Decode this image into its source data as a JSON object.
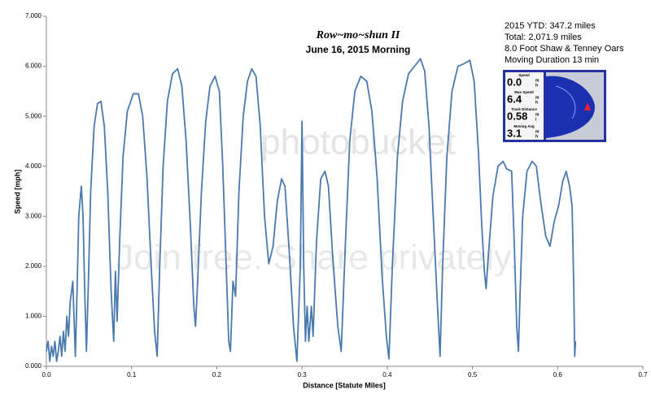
{
  "chart_data": {
    "type": "line",
    "title": "Row~mo~shun II",
    "subtitle": "June 16, 2015 Morning",
    "xlabel": "Distance [Statute Miles]",
    "ylabel": "Speed [mph]",
    "color": "#4a7aad",
    "xlim": [
      0,
      0.7
    ],
    "ylim": [
      0,
      7
    ],
    "xticks": [
      {
        "value": 0,
        "label": "0.0"
      },
      0.1,
      0.2,
      0.3,
      0.4,
      0.5,
      0.6,
      0.7
    ],
    "yticks": [
      {
        "value": 0,
        "label": "0.000"
      },
      {
        "value": 1,
        "label": "1.000"
      },
      {
        "value": 2,
        "label": "2.000"
      },
      {
        "value": 3,
        "label": "3.000"
      },
      {
        "value": 4,
        "label": "4.000"
      },
      {
        "value": 5,
        "label": "5.000"
      },
      {
        "value": 6,
        "label": "6.000"
      },
      {
        "value": 7,
        "label": "7.000"
      }
    ],
    "x": [
      0.0,
      0.002,
      0.004,
      0.006,
      0.008,
      0.01,
      0.012,
      0.014,
      0.016,
      0.018,
      0.02,
      0.022,
      0.024,
      0.026,
      0.028,
      0.031,
      0.034,
      0.036,
      0.038,
      0.041,
      0.043,
      0.045,
      0.047,
      0.049,
      0.052,
      0.056,
      0.06,
      0.064,
      0.068,
      0.072,
      0.076,
      0.079,
      0.081,
      0.083,
      0.086,
      0.09,
      0.095,
      0.102,
      0.108,
      0.113,
      0.118,
      0.123,
      0.127,
      0.13,
      0.133,
      0.137,
      0.142,
      0.148,
      0.154,
      0.159,
      0.164,
      0.169,
      0.173,
      0.175,
      0.177,
      0.182,
      0.187,
      0.192,
      0.198,
      0.203,
      0.207,
      0.211,
      0.214,
      0.216,
      0.219,
      0.222,
      0.226,
      0.231,
      0.236,
      0.241,
      0.246,
      0.251,
      0.256,
      0.261,
      0.266,
      0.271,
      0.276,
      0.28,
      0.285,
      0.29,
      0.294,
      0.298,
      0.3,
      0.302,
      0.304,
      0.306,
      0.308,
      0.311,
      0.313,
      0.317,
      0.322,
      0.327,
      0.331,
      0.336,
      0.342,
      0.346,
      0.351,
      0.356,
      0.362,
      0.369,
      0.376,
      0.382,
      0.388,
      0.394,
      0.399,
      0.402,
      0.406,
      0.412,
      0.418,
      0.425,
      0.432,
      0.439,
      0.444,
      0.449,
      0.454,
      0.459,
      0.462,
      0.465,
      0.47,
      0.476,
      0.483,
      0.49,
      0.497,
      0.502,
      0.507,
      0.511,
      0.514,
      0.516,
      0.519,
      0.524,
      0.53,
      0.536,
      0.54,
      0.546,
      0.549,
      0.552,
      0.554,
      0.556,
      0.559,
      0.564,
      0.57,
      0.575,
      0.58,
      0.586,
      0.591,
      0.596,
      0.601,
      0.606,
      0.61,
      0.614,
      0.617,
      0.619,
      0.62,
      0.621
    ],
    "values": [
      0.3,
      0.5,
      0.1,
      0.4,
      0.2,
      0.5,
      0.1,
      0.3,
      0.6,
      0.2,
      0.7,
      0.3,
      1.0,
      0.6,
      1.3,
      1.7,
      0.2,
      1.5,
      3.0,
      3.6,
      3.0,
      1.5,
      0.3,
      1.5,
      3.5,
      4.8,
      5.25,
      5.3,
      4.8,
      3.5,
      1.5,
      0.5,
      1.9,
      0.9,
      2.5,
      4.2,
      5.1,
      5.45,
      5.45,
      5.0,
      3.8,
      2.0,
      0.7,
      0.2,
      2.0,
      4.0,
      5.3,
      5.85,
      5.95,
      5.6,
      4.5,
      2.8,
      1.2,
      0.8,
      1.5,
      3.5,
      4.9,
      5.6,
      5.8,
      5.5,
      4.0,
      2.0,
      0.5,
      0.3,
      1.7,
      1.4,
      3.5,
      5.0,
      5.7,
      5.95,
      5.8,
      4.8,
      3.0,
      2.05,
      2.4,
      3.3,
      3.75,
      3.6,
      2.3,
      0.8,
      0.1,
      2.0,
      4.9,
      2.0,
      0.5,
      1.2,
      0.5,
      1.2,
      0.6,
      2.5,
      3.75,
      3.9,
      3.6,
      2.2,
      0.8,
      0.3,
      2.5,
      4.5,
      5.5,
      5.8,
      5.7,
      5.1,
      3.8,
      1.8,
      0.6,
      0.15,
      2.0,
      4.2,
      5.3,
      5.85,
      6.0,
      6.15,
      5.9,
      4.8,
      3.0,
      1.2,
      0.2,
      2.0,
      4.2,
      5.5,
      6.0,
      6.05,
      6.12,
      5.7,
      4.3,
      2.8,
      1.9,
      1.55,
      2.3,
      3.4,
      4.0,
      4.1,
      3.95,
      3.9,
      2.5,
      0.8,
      0.3,
      1.5,
      3.0,
      3.9,
      4.1,
      4.0,
      3.3,
      2.6,
      2.4,
      2.9,
      3.2,
      3.7,
      3.9,
      3.6,
      3.2,
      1.5,
      0.2,
      0.5
    ],
    "stats": [
      "2015 YTD:   347.2 miles",
      "Total:        2,071.9 miles",
      "8.0 Foot Shaw & Tenney Oars",
      "Moving Duration  13 min"
    ],
    "inset": [
      {
        "label": "Speed",
        "value": "0.0",
        "unit_top": "m",
        "unit_bottom": "h"
      },
      {
        "label": "Max Speed",
        "value": "6.4",
        "unit_top": "m",
        "unit_bottom": "h"
      },
      {
        "label": "Track Distance",
        "value": "0.58",
        "unit_top": "m",
        "unit_bottom": "i"
      },
      {
        "label": "Moving Avg",
        "value": "3.1",
        "unit_top": "m",
        "unit_bottom": "h"
      }
    ],
    "watermark": [
      "photobucket",
      "Join free. Share privately."
    ]
  }
}
